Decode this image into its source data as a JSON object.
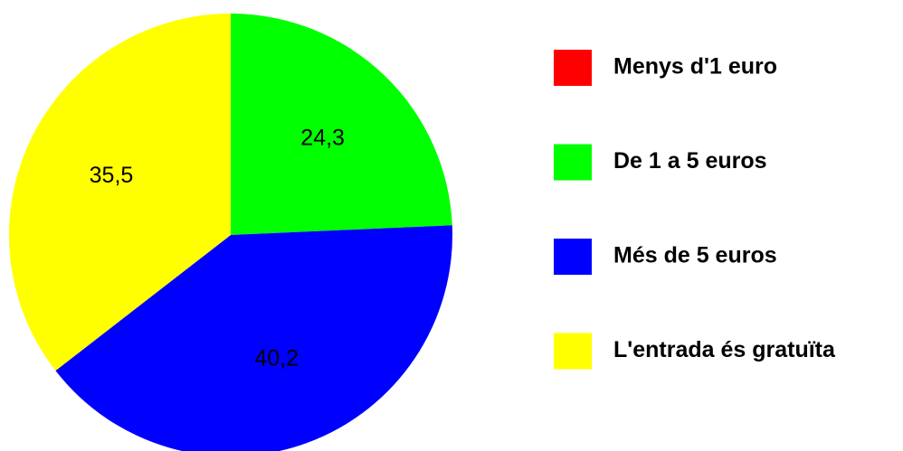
{
  "chart_data": {
    "type": "pie",
    "categories": [
      "Menys d'1 euro",
      "De 1 a 5 euros",
      "Més de 5 euros",
      "L'entrada és gratuïta"
    ],
    "values": [
      0,
      24.3,
      40.2,
      35.5
    ],
    "value_labels": [
      null,
      "24,3",
      "40,2",
      "35,5"
    ],
    "colors": [
      "#ff0000",
      "#00ff00",
      "#0000ff",
      "#ffff00"
    ],
    "legend": "right"
  }
}
